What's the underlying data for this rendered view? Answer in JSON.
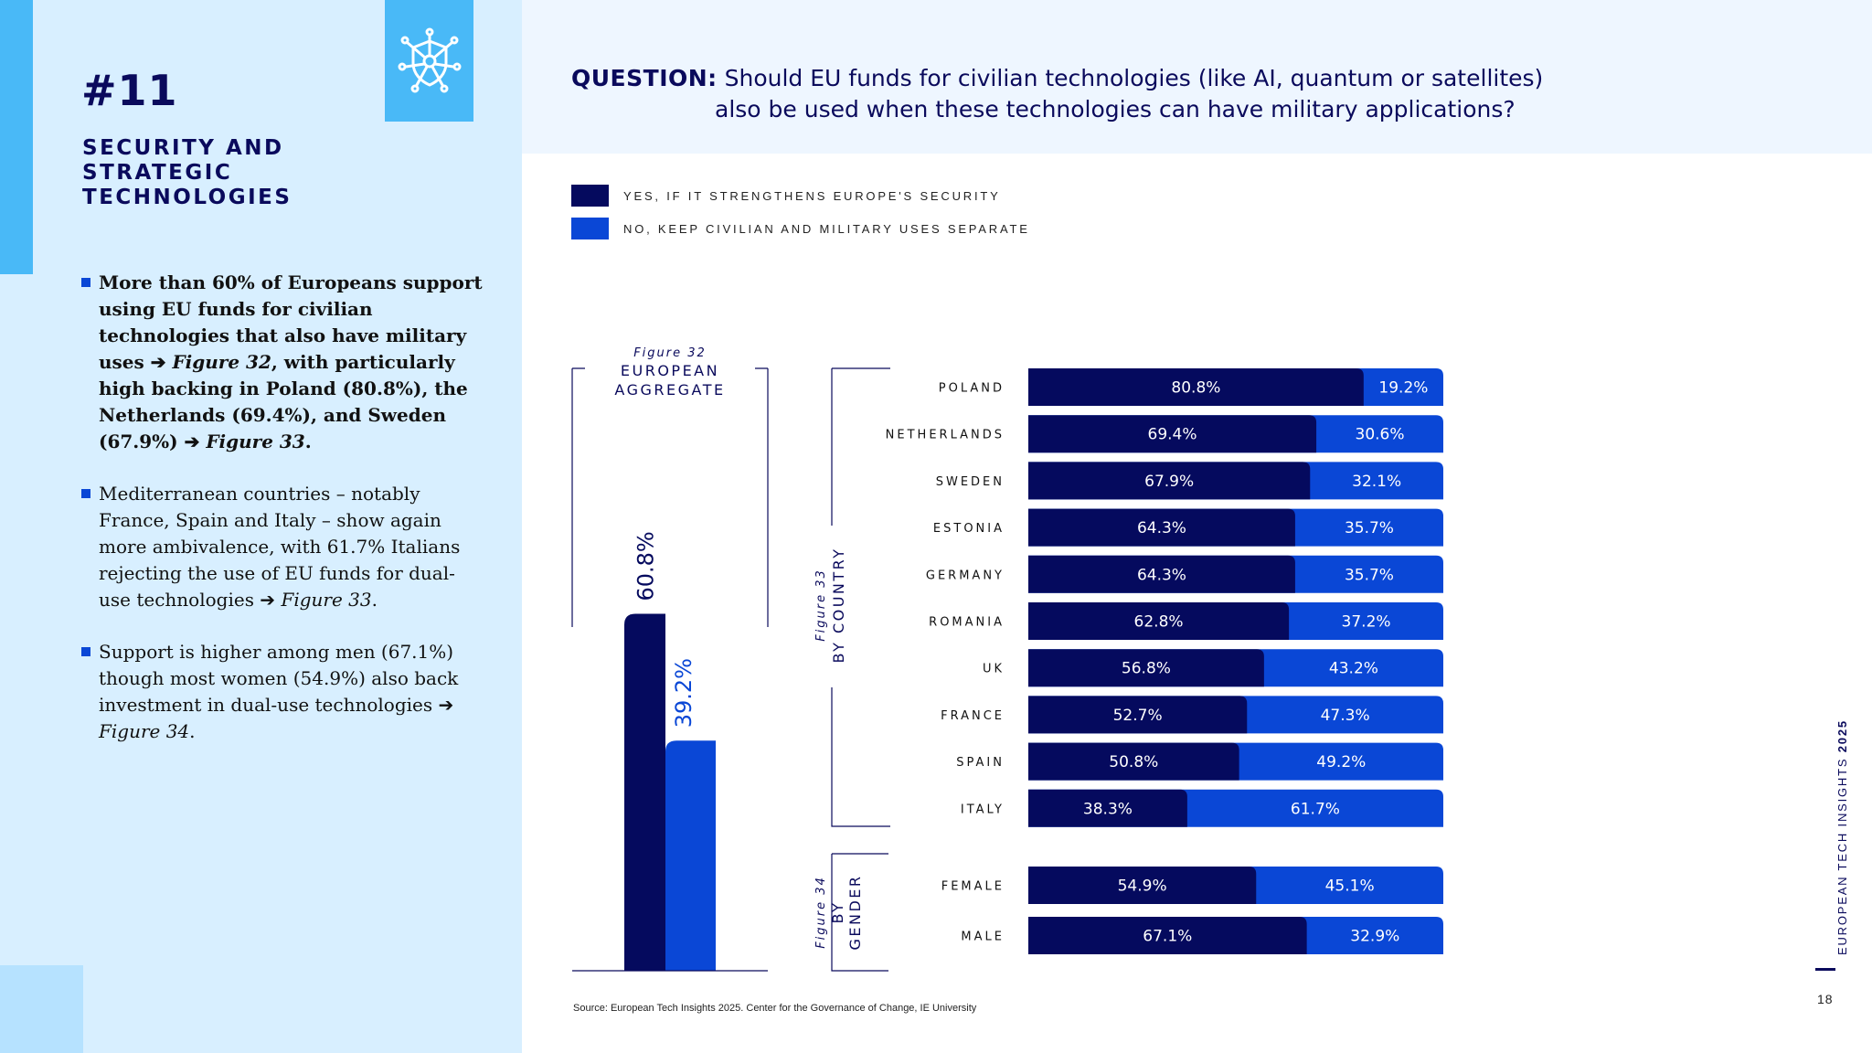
{
  "section": {
    "number": "#11",
    "title": "SECURITY AND STRATEGIC TECHNOLOGIES"
  },
  "bullets": [
    {
      "text": "More than 60% of Europeans support using EU funds for civilian technologies that also have military uses",
      "ref1": "Figure 32",
      "text2": ", with particularly high backing in Poland (80.8%), the Netherlands (69.4%), and Sweden (67.9%)",
      "ref2": "Figure 33",
      "end": "."
    },
    {
      "text": "Mediterranean countries – notably France, Spain and Italy – show again more ambivalence, with 61.7% Italians rejecting the use of EU funds for dual-use technologies",
      "ref1": "Figure 33",
      "end": "."
    },
    {
      "text": "Support is higher among men (67.1%) though most women (54.9%) also back investment in dual-use technologies",
      "ref1": "Figure 34",
      "end": "."
    }
  ],
  "question": {
    "label": "QUESTION:",
    "line1": "Should EU funds for civilian technologies (like AI, quantum or satellites)",
    "line2": "also be used when these technologies can have military applications?"
  },
  "colors": {
    "yes": "#050a5e",
    "no": "#0a47d6",
    "dark_text": "#0a0a5c"
  },
  "chart_data": [
    {
      "type": "bar",
      "figure": "Figure 32",
      "title": "EUROPEAN AGGREGATE",
      "categories": [
        "EUROPEAN AGGREGATE"
      ],
      "series": [
        {
          "name": "YES, IF IT STRENGTHENS EUROPE'S SECURITY",
          "values": [
            60.8
          ]
        },
        {
          "name": "NO, KEEP CIVILIAN AND MILITARY USES SEPARATE",
          "values": [
            39.2
          ]
        }
      ],
      "labels": [
        "60.8%",
        "39.2%"
      ]
    },
    {
      "type": "bar",
      "figure": "Figure 33",
      "title": "BY COUNTRY",
      "orientation": "horizontal-stacked",
      "categories": [
        "POLAND",
        "NETHERLANDS",
        "SWEDEN",
        "ESTONIA",
        "GERMANY",
        "ROMANIA",
        "UK",
        "FRANCE",
        "SPAIN",
        "ITALY"
      ],
      "series": [
        {
          "name": "YES, IF IT STRENGTHENS EUROPE'S SECURITY",
          "values": [
            80.8,
            69.4,
            67.9,
            64.3,
            64.3,
            62.8,
            56.8,
            52.7,
            50.8,
            38.3
          ],
          "labels": [
            "80.8%",
            "69.4%",
            "67.9%",
            "64.3%",
            "64.3%",
            "62.8%",
            "56.8%",
            "52.7%",
            "50.8%",
            "38.3%"
          ]
        },
        {
          "name": "NO, KEEP CIVILIAN AND MILITARY USES SEPARATE",
          "values": [
            19.2,
            30.6,
            32.1,
            35.7,
            35.7,
            37.2,
            43.2,
            47.3,
            49.2,
            61.7
          ],
          "labels": [
            "19.2%",
            "30.6%",
            "32.1%",
            "35.7%",
            "35.7%",
            "37.2%",
            "43.2%",
            "47.3%",
            "49.2%",
            "61.7%"
          ]
        }
      ]
    },
    {
      "type": "bar",
      "figure": "Figure 34",
      "title": "BY GENDER",
      "orientation": "horizontal-stacked",
      "categories": [
        "FEMALE",
        "MALE"
      ],
      "series": [
        {
          "name": "YES, IF IT STRENGTHENS EUROPE'S SECURITY",
          "values": [
            54.9,
            67.1
          ],
          "labels": [
            "54.9%",
            "67.1%"
          ]
        },
        {
          "name": "NO, KEEP CIVILIAN AND MILITARY USES SEPARATE",
          "values": [
            45.1,
            32.9
          ],
          "labels": [
            "45.1%",
            "32.9%"
          ]
        }
      ]
    }
  ],
  "legend": [
    {
      "label": "YES, IF IT STRENGTHENS EUROPE'S SECURITY"
    },
    {
      "label": "NO, KEEP CIVILIAN AND MILITARY USES SEPARATE"
    }
  ],
  "source": "Source: European Tech Insights 2025. Center for the Governance of Change, IE University",
  "footer": {
    "publication": "EUROPEAN TECH INSIGHTS",
    "year": "2025",
    "page": "18"
  },
  "icons": {
    "section_icon": "shield-network-icon"
  }
}
